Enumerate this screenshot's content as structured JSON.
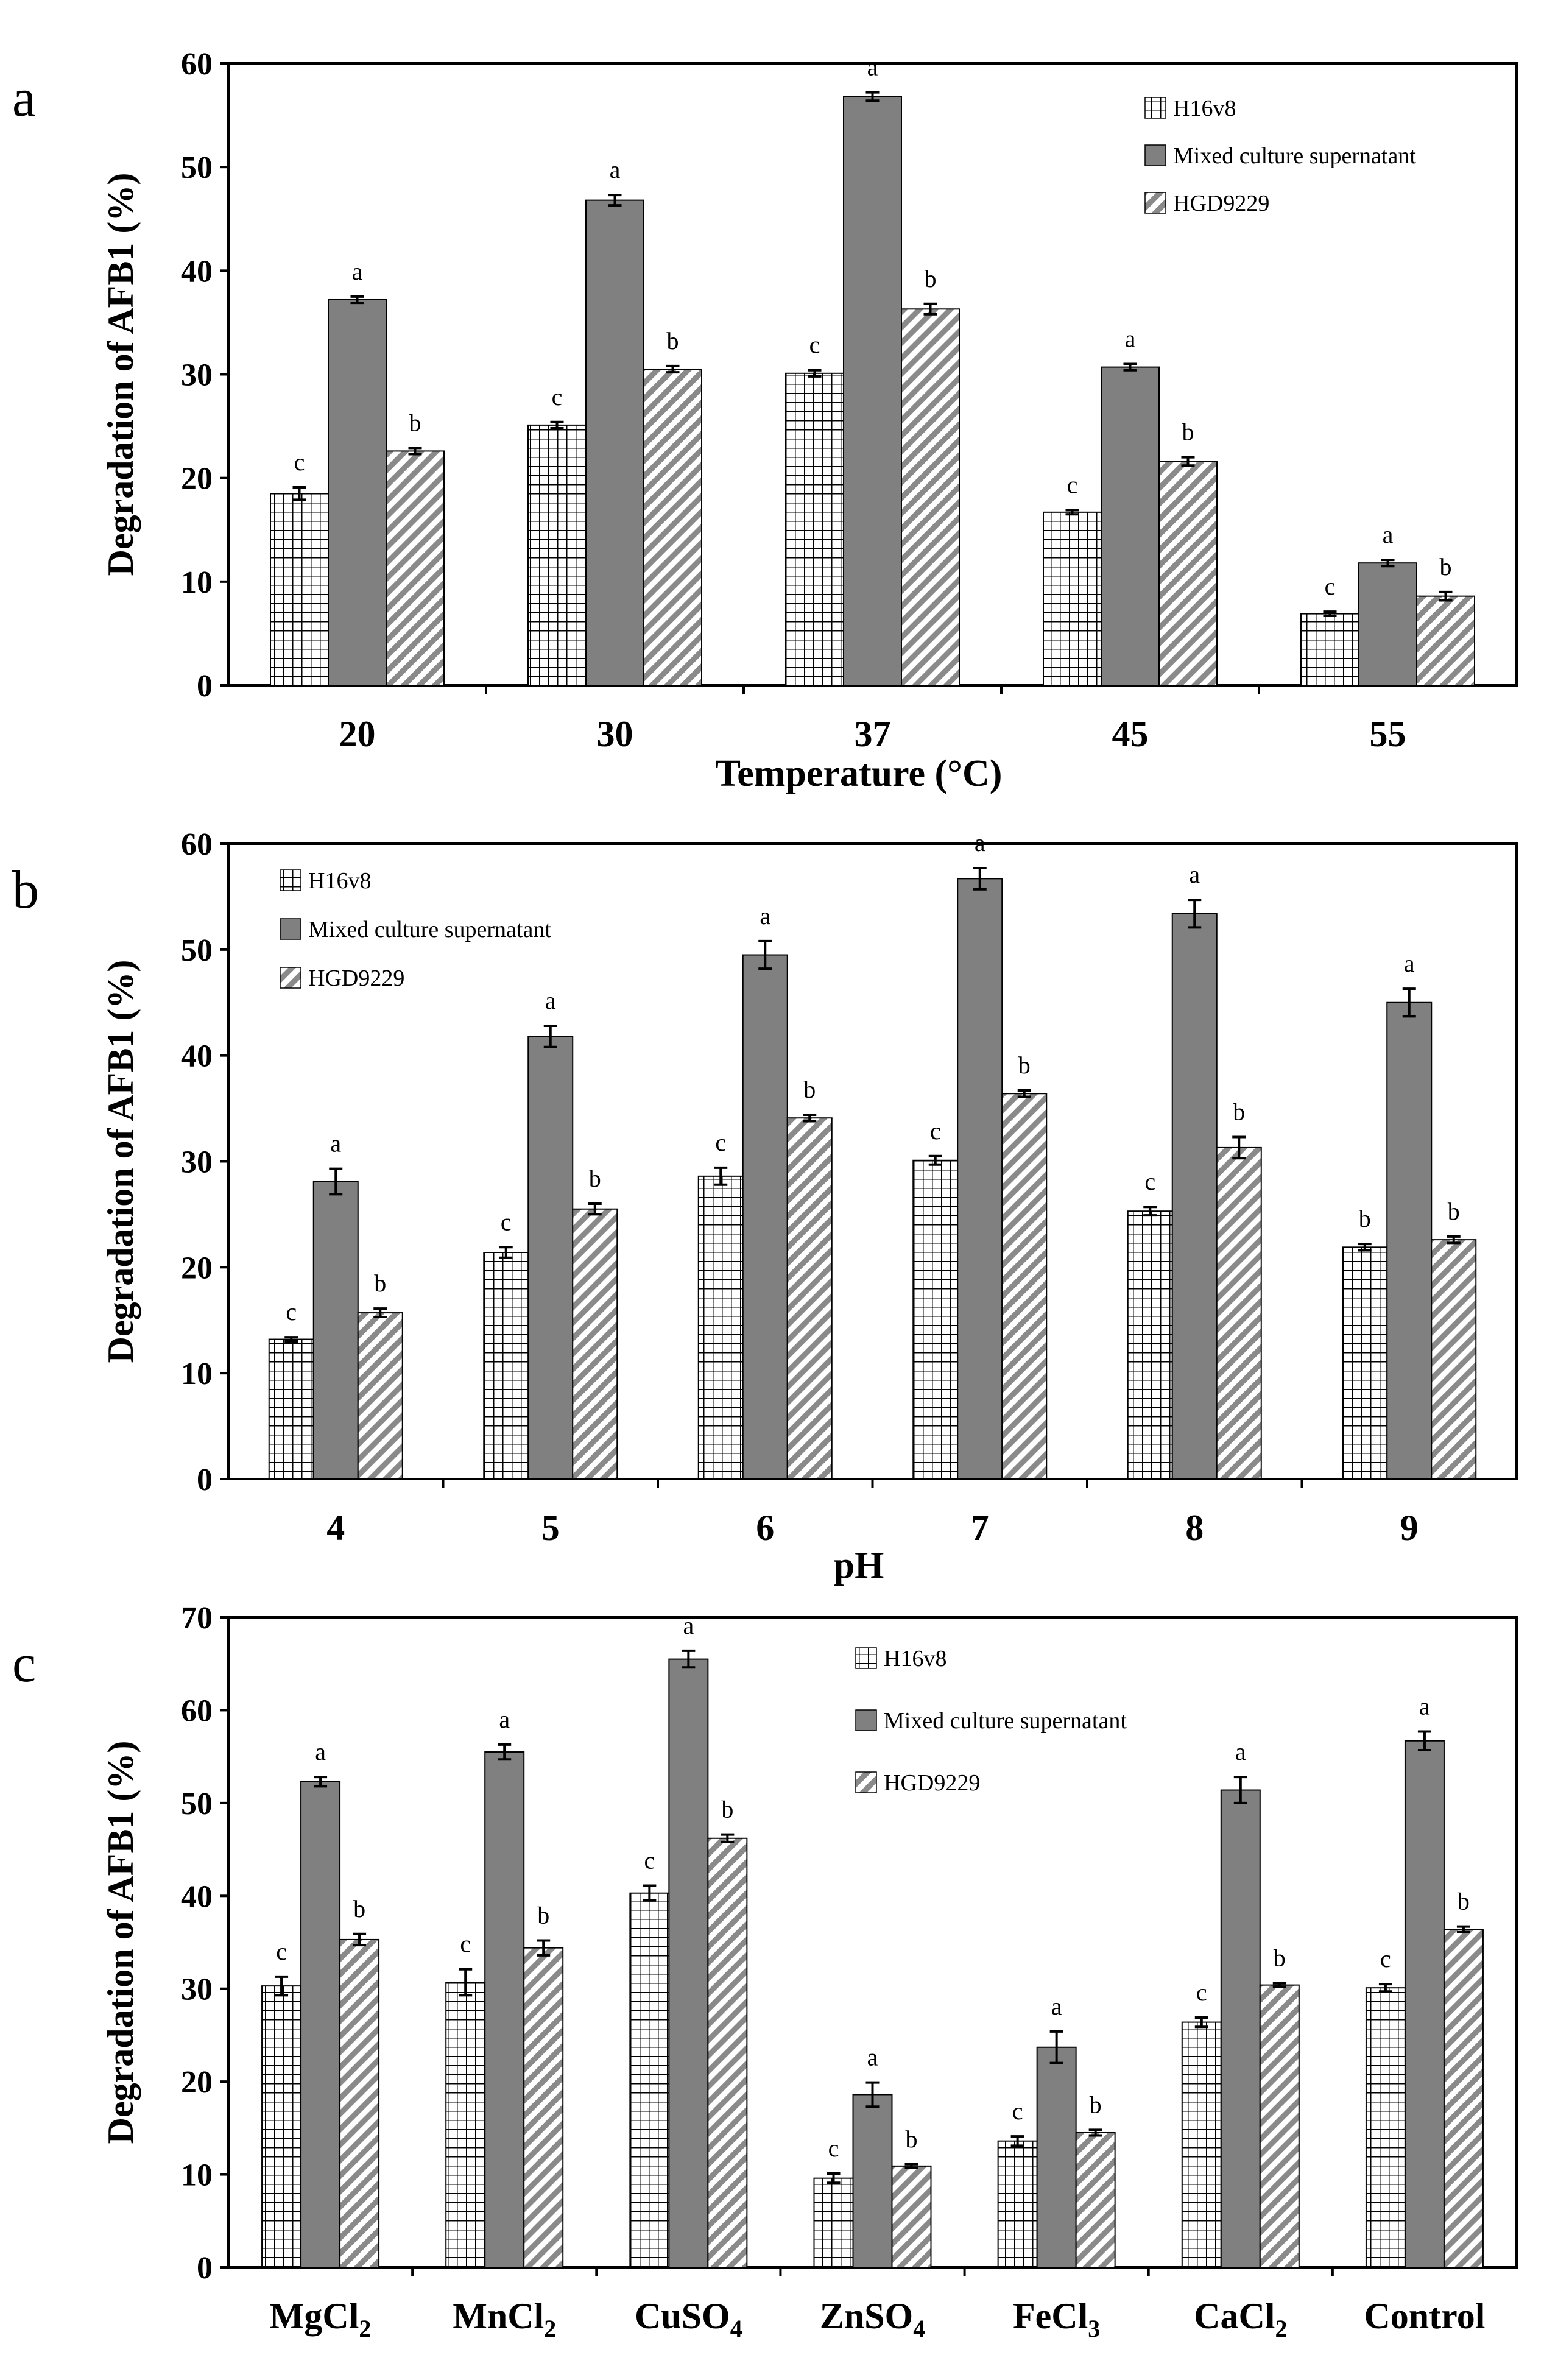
{
  "colors": {
    "mixed": "#808080",
    "outline": "#000000",
    "background": "#ffffff"
  },
  "chart_data": [
    {
      "panel": "a",
      "type": "bar",
      "xlabel": "Temperature (°C)",
      "ylabel": "Degradation of AFB1 (%)",
      "ylim": [
        0,
        60
      ],
      "yticks": [
        0,
        10,
        20,
        30,
        40,
        50,
        60
      ],
      "legend_position": "top-right",
      "categories": [
        "20",
        "30",
        "37",
        "45",
        "55"
      ],
      "series": [
        {
          "name": "H16v8",
          "pattern": "grid",
          "values": [
            18.5,
            25.1,
            30.1,
            16.7,
            6.9
          ],
          "errors": [
            0.6,
            0.3,
            0.3,
            0.2,
            0.2
          ],
          "labels": [
            "c",
            "c",
            "c",
            "c",
            "c"
          ]
        },
        {
          "name": "Mixed culture supernatant",
          "pattern": "solid",
          "values": [
            37.2,
            46.8,
            56.8,
            30.7,
            11.8
          ],
          "errors": [
            0.3,
            0.5,
            0.4,
            0.3,
            0.3
          ],
          "labels": [
            "a",
            "a",
            "a",
            "a",
            "a"
          ]
        },
        {
          "name": "HGD9229",
          "pattern": "hatch",
          "values": [
            22.6,
            30.5,
            36.3,
            21.6,
            8.6
          ],
          "errors": [
            0.3,
            0.3,
            0.5,
            0.4,
            0.4
          ],
          "labels": [
            "b",
            "b",
            "b",
            "b",
            "b"
          ]
        }
      ]
    },
    {
      "panel": "b",
      "type": "bar",
      "xlabel": "pH",
      "ylabel": "Degradation of AFB1 (%)",
      "ylim": [
        0,
        60
      ],
      "yticks": [
        0,
        10,
        20,
        30,
        40,
        50,
        60
      ],
      "legend_position": "top-left",
      "categories": [
        "4",
        "5",
        "6",
        "7",
        "8",
        "9"
      ],
      "series": [
        {
          "name": "H16v8",
          "pattern": "grid",
          "values": [
            13.2,
            21.4,
            28.6,
            30.1,
            25.3,
            21.9
          ],
          "errors": [
            0.2,
            0.5,
            0.8,
            0.4,
            0.4,
            0.3
          ],
          "labels": [
            "c",
            "c",
            "c",
            "c",
            "c",
            "b"
          ]
        },
        {
          "name": "Mixed culture supernatant",
          "pattern": "solid",
          "values": [
            28.1,
            41.8,
            49.5,
            56.7,
            53.4,
            45.0
          ],
          "errors": [
            1.2,
            1.0,
            1.3,
            1.0,
            1.3,
            1.3
          ],
          "labels": [
            "a",
            "a",
            "a",
            "a",
            "a",
            "a"
          ]
        },
        {
          "name": "HGD9229",
          "pattern": "hatch",
          "values": [
            15.7,
            25.5,
            34.1,
            36.4,
            31.3,
            22.6
          ],
          "errors": [
            0.4,
            0.5,
            0.3,
            0.3,
            1.0,
            0.3
          ],
          "labels": [
            "b",
            "b",
            "b",
            "b",
            "b",
            "b"
          ]
        }
      ]
    },
    {
      "panel": "c",
      "type": "bar",
      "xlabel": "",
      "ylabel": "Degradation of AFB1 (%)",
      "ylim": [
        0,
        70
      ],
      "yticks": [
        0,
        10,
        20,
        30,
        40,
        50,
        60,
        70
      ],
      "legend_position": "top-center",
      "categories": [
        "MgCl",
        "MnCl",
        "CuSO",
        "ZnSO",
        "FeCl",
        "CaCl",
        "Control"
      ],
      "category_subscripts": [
        "2",
        "2",
        "4",
        "4",
        "3",
        "2",
        ""
      ],
      "series": [
        {
          "name": "H16v8",
          "pattern": "grid",
          "values": [
            30.3,
            30.7,
            40.3,
            9.6,
            13.6,
            26.4,
            30.1
          ],
          "errors": [
            1.0,
            1.4,
            0.8,
            0.5,
            0.5,
            0.5,
            0.4
          ],
          "labels": [
            "c",
            "c",
            "c",
            "c",
            "c",
            "c",
            "c"
          ]
        },
        {
          "name": "Mixed culture supernatant",
          "pattern": "solid",
          "values": [
            52.3,
            55.5,
            65.5,
            18.6,
            23.7,
            51.4,
            56.7
          ],
          "errors": [
            0.5,
            0.8,
            0.9,
            1.3,
            1.7,
            1.4,
            1.0
          ],
          "labels": [
            "a",
            "a",
            "a",
            "a",
            "a",
            "a",
            "a"
          ]
        },
        {
          "name": "HGD9229",
          "pattern": "hatch",
          "values": [
            35.3,
            34.4,
            46.2,
            10.9,
            14.5,
            30.4,
            36.4
          ],
          "errors": [
            0.6,
            0.8,
            0.4,
            0.2,
            0.3,
            0.2,
            0.3
          ],
          "labels": [
            "b",
            "b",
            "b",
            "b",
            "b",
            "b",
            "b"
          ]
        }
      ]
    }
  ]
}
